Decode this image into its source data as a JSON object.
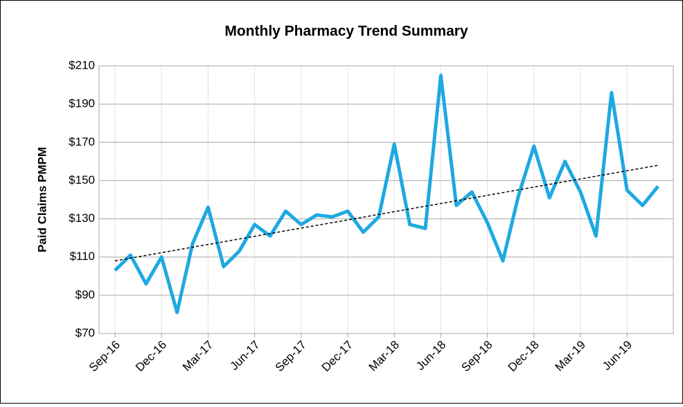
{
  "chart_data": {
    "type": "line",
    "title": "Monthly Pharmacy Trend Summary",
    "y_label": "Paid Claims PMPM",
    "categories": [
      "Sep-16",
      null,
      null,
      "Dec-16",
      null,
      null,
      "Mar-17",
      null,
      null,
      "Jun-17",
      null,
      null,
      "Sep-17",
      null,
      null,
      "Dec-17",
      null,
      null,
      "Mar-18",
      null,
      null,
      "Jun-18",
      null,
      null,
      "Sep-18",
      null,
      null,
      "Dec-18",
      null,
      null,
      "Mar-19",
      null,
      null,
      "Jun-19",
      null,
      null
    ],
    "series": [
      {
        "color": "#1ea9e1",
        "values": [
          103,
          111,
          96,
          110,
          81,
          117,
          136,
          105,
          113,
          127,
          121,
          134,
          127,
          132,
          131,
          134,
          123,
          131,
          169,
          127,
          125,
          205,
          137,
          144,
          128,
          108,
          142,
          168,
          141,
          160,
          144,
          121,
          196,
          145,
          137,
          147
        ]
      }
    ],
    "trendline": {
      "color": "#000000",
      "dashed": true,
      "values": [
        108,
        158
      ]
    },
    "ylim": [
      70,
      210
    ],
    "yticks": [
      {
        "value": 70,
        "label": "$70"
      },
      {
        "value": 90,
        "label": "$90"
      },
      {
        "value": 110,
        "label": "$110"
      },
      {
        "value": 130,
        "label": "$130"
      },
      {
        "value": 150,
        "label": "$150"
      },
      {
        "value": 170,
        "label": "$170"
      },
      {
        "value": 190,
        "label": "$190"
      },
      {
        "value": 210,
        "label": "$210"
      }
    ],
    "grid": true
  }
}
